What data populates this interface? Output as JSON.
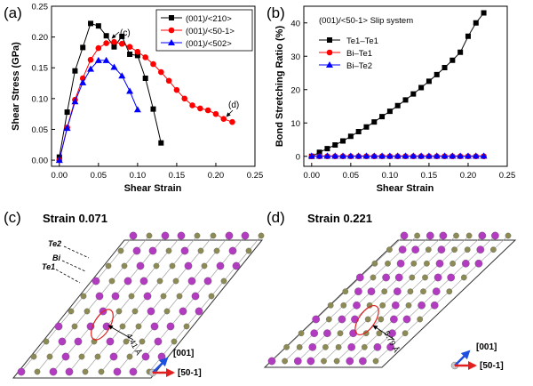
{
  "panel_labels": {
    "a": "(a)",
    "b": "(b)",
    "c": "(c)",
    "d": "(d)"
  },
  "colors": {
    "black": "#000000",
    "red": "#ff0000",
    "blue": "#0000ff",
    "te": "#8c8a55",
    "bi": "#b23cc0",
    "ellipse": "#e02020",
    "lattice_arrow_blue": "#1f4fe0",
    "lattice_arrow_red": "#e02020"
  },
  "chart_data": [
    {
      "panel": "a",
      "type": "line",
      "xlabel": "Shear Strain",
      "ylabel": "Shear Stress (GPa)",
      "xlim": [
        -0.01,
        0.25
      ],
      "ylim": [
        -0.01,
        0.25
      ],
      "xticks": [
        0.0,
        0.05,
        0.1,
        0.15,
        0.2,
        0.25
      ],
      "xtick_labels": [
        "0.00",
        "0.05",
        "0.10",
        "0.15",
        "0.20",
        "0.25"
      ],
      "yticks": [
        0.0,
        0.05,
        0.1,
        0.15,
        0.2,
        0.25
      ],
      "ytick_labels": [
        "0.00",
        "0.05",
        "0.10",
        "0.15",
        "0.20",
        "0.25"
      ],
      "legend_position": "top-right",
      "annotations": [
        {
          "text": "(c)",
          "x": 0.071,
          "y": 0.192
        },
        {
          "text": "(d)",
          "x": 0.221,
          "y": 0.062
        }
      ],
      "series": [
        {
          "name": "(001)/<210>",
          "color": "#000000",
          "marker": "square",
          "x": [
            0.0,
            0.01,
            0.02,
            0.03,
            0.04,
            0.05,
            0.06,
            0.07,
            0.08,
            0.09,
            0.1,
            0.11,
            0.12,
            0.13
          ],
          "y": [
            0.005,
            0.078,
            0.145,
            0.183,
            0.222,
            0.218,
            0.202,
            0.184,
            0.201,
            0.172,
            0.17,
            0.133,
            0.083,
            0.028
          ]
        },
        {
          "name": "(001)/<50-1>",
          "color": "#ff0000",
          "marker": "circle",
          "x": [
            0.0,
            0.01,
            0.02,
            0.03,
            0.04,
            0.05,
            0.06,
            0.07,
            0.08,
            0.09,
            0.1,
            0.11,
            0.12,
            0.13,
            0.14,
            0.15,
            0.16,
            0.17,
            0.18,
            0.19,
            0.2,
            0.21,
            0.221
          ],
          "y": [
            0.0,
            0.053,
            0.098,
            0.133,
            0.163,
            0.182,
            0.19,
            0.192,
            0.189,
            0.184,
            0.176,
            0.167,
            0.156,
            0.143,
            0.129,
            0.114,
            0.1,
            0.089,
            0.084,
            0.081,
            0.075,
            0.067,
            0.062
          ]
        },
        {
          "name": "(001)/<502>",
          "color": "#0000ff",
          "marker": "triangle",
          "x": [
            0.0,
            0.01,
            0.02,
            0.03,
            0.04,
            0.05,
            0.06,
            0.07,
            0.08,
            0.09,
            0.1
          ],
          "y": [
            0.0,
            0.052,
            0.095,
            0.126,
            0.148,
            0.162,
            0.162,
            0.151,
            0.137,
            0.112,
            0.082
          ]
        }
      ]
    },
    {
      "panel": "b",
      "type": "line",
      "title": "(001)/<50-1> Slip system",
      "xlabel": "Shear Strain",
      "ylabel": "Bond Stretching Ratio (%)",
      "xlim": [
        -0.01,
        0.25
      ],
      "ylim": [
        -3,
        45
      ],
      "xticks": [
        0.0,
        0.05,
        0.1,
        0.15,
        0.2,
        0.25
      ],
      "xtick_labels": [
        "0.00",
        "0.05",
        "0.10",
        "0.15",
        "0.20",
        "0.25"
      ],
      "yticks": [
        0,
        10,
        20,
        30,
        40
      ],
      "ytick_labels": [
        "0",
        "10",
        "20",
        "30",
        "40"
      ],
      "legend_position": "top-left",
      "series": [
        {
          "name": "Te1–Te1",
          "color": "#000000",
          "marker": "square",
          "x": [
            0.0,
            0.01,
            0.02,
            0.03,
            0.04,
            0.05,
            0.06,
            0.07,
            0.08,
            0.09,
            0.1,
            0.11,
            0.12,
            0.13,
            0.14,
            0.15,
            0.16,
            0.17,
            0.18,
            0.19,
            0.2,
            0.21,
            0.22
          ],
          "y": [
            0.0,
            1.2,
            2.3,
            3.4,
            4.6,
            6.0,
            7.4,
            8.8,
            10.3,
            11.9,
            13.5,
            15.2,
            16.9,
            18.7,
            20.6,
            22.5,
            24.5,
            26.6,
            28.8,
            31.2,
            36.0,
            40.0,
            43.0
          ]
        },
        {
          "name": "Bi–Te1",
          "color": "#ff0000",
          "marker": "circle",
          "x": [
            0.0,
            0.01,
            0.02,
            0.03,
            0.04,
            0.05,
            0.06,
            0.07,
            0.08,
            0.09,
            0.1,
            0.11,
            0.12,
            0.13,
            0.14,
            0.15,
            0.16,
            0.17,
            0.18,
            0.19,
            0.2,
            0.21,
            0.22
          ],
          "y": [
            0,
            0,
            0,
            0,
            0,
            0,
            0,
            0,
            0,
            0,
            0,
            0,
            0,
            0,
            0,
            0,
            0,
            0,
            0,
            0,
            0,
            0,
            0
          ]
        },
        {
          "name": "Bi–Te2",
          "color": "#0000ff",
          "marker": "triangle",
          "x": [
            0.0,
            0.01,
            0.02,
            0.03,
            0.04,
            0.05,
            0.06,
            0.07,
            0.08,
            0.09,
            0.1,
            0.11,
            0.12,
            0.13,
            0.14,
            0.15,
            0.16,
            0.17,
            0.18,
            0.19,
            0.2,
            0.21,
            0.22
          ],
          "y": [
            0.1,
            0.1,
            0.1,
            0.1,
            0.1,
            0.1,
            0.1,
            0.1,
            0.1,
            0.1,
            0.1,
            0.1,
            0.1,
            0.1,
            0.1,
            0.1,
            0.1,
            0.1,
            0.1,
            0.1,
            0.1,
            0.1,
            0.1
          ]
        }
      ]
    }
  ],
  "structures": {
    "c": {
      "title": "Strain 0.071",
      "layer_labels": [
        "Te2",
        "Bi",
        "Te1"
      ],
      "distance": "4.41 Å",
      "axis_up": "[001]",
      "axis_right": "[50-1]"
    },
    "d": {
      "title": "Strain 0.221",
      "distance": "5.79 Å",
      "axis_up": "[001]",
      "axis_right": "[50-1]"
    }
  }
}
